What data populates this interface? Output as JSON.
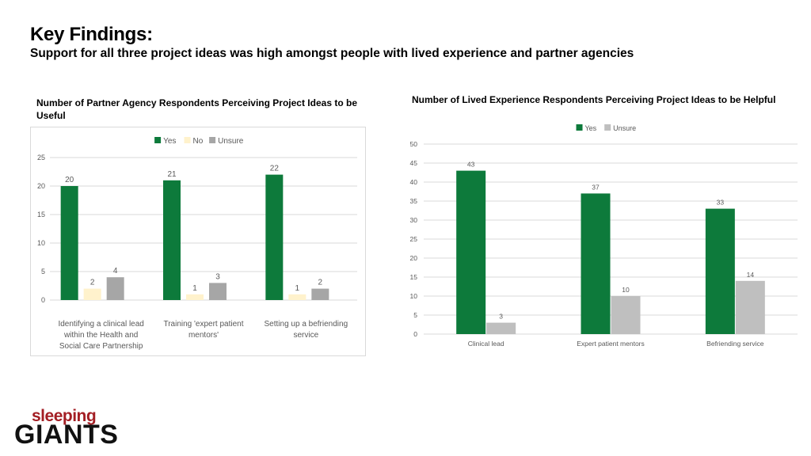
{
  "header": {
    "title": "Key Findings:",
    "subtitle": "Support for all three project ideas was high amongst people with lived experience and partner agencies"
  },
  "logo": {
    "line1": "sleeping",
    "line2": "GIANTS"
  },
  "colors": {
    "yes": "#0d7a3b",
    "no": "#fff2cc",
    "unsure": "#a6a6a6",
    "unsure2": "#bfbfbf",
    "grid": "#d9d9d9",
    "axis_text": "#595959"
  },
  "chart_data": [
    {
      "type": "bar",
      "title": "Number of Partner Agency Respondents Perceiving Project Ideas to be Useful",
      "categories": [
        "Identifying a clinical lead within the Health and Social Care Partnership",
        "Training 'expert patient mentors'",
        "Setting up a befriending service"
      ],
      "category_lines": [
        [
          "Identifying a clinical lead",
          "within the Health and",
          "Social Care Partnership"
        ],
        [
          "Training 'expert patient",
          "mentors'"
        ],
        [
          "Setting up a befriending",
          "service"
        ]
      ],
      "series": [
        {
          "name": "Yes",
          "values": [
            20,
            21,
            22
          ]
        },
        {
          "name": "No",
          "values": [
            2,
            1,
            1
          ]
        },
        {
          "name": "Unsure",
          "values": [
            4,
            3,
            2
          ]
        }
      ],
      "ylim": [
        0,
        25
      ],
      "yticks": [
        0,
        5,
        10,
        15,
        20,
        25
      ],
      "legend": "top",
      "grid": true
    },
    {
      "type": "bar",
      "title": "Number of Lived Experience Respondents Perceiving Project Ideas to be Helpful",
      "categories": [
        "Clinical lead",
        "Expert patient mentors",
        "Befriending service"
      ],
      "series": [
        {
          "name": "Yes",
          "values": [
            43,
            37,
            33
          ]
        },
        {
          "name": "Unsure",
          "values": [
            3,
            10,
            14
          ]
        }
      ],
      "ylim": [
        0,
        50
      ],
      "yticks": [
        0,
        5,
        10,
        15,
        20,
        25,
        30,
        35,
        40,
        45,
        50
      ],
      "legend": "top",
      "grid": true
    }
  ]
}
